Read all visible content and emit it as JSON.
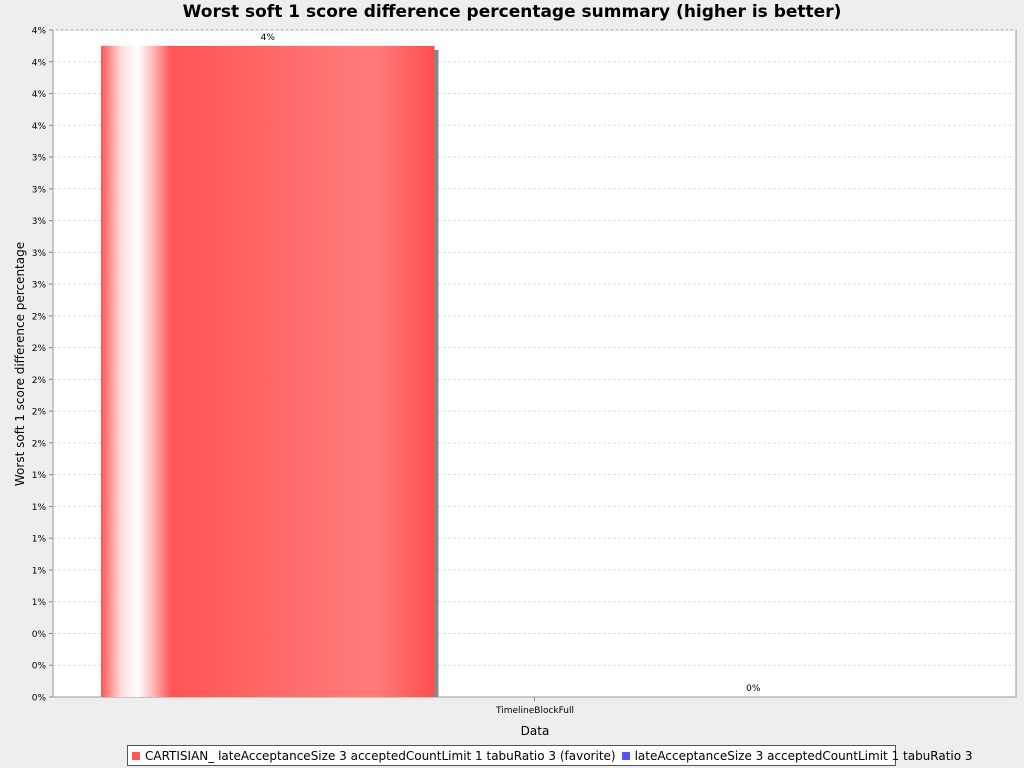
{
  "chart_data": {
    "type": "bar",
    "title": "Worst soft 1 score difference percentage summary (higher is better)",
    "xlabel": "Data",
    "ylabel": "Worst soft 1 score difference percentage",
    "categories": [
      "TimelineBlockFull"
    ],
    "series": [
      {
        "name": "CARTISIAN_ lateAcceptanceSize 3 acceptedCountLimit 1 tabuRatio 3 (favorite)",
        "color": "#ff5555",
        "values": [
          4.1
        ],
        "value_label": "4%"
      },
      {
        "name": "lateAcceptanceSize 3 acceptedCountLimit 1 tabuRatio 3",
        "color": "#5555ff",
        "values": [
          0.0
        ],
        "value_label": "0%"
      }
    ],
    "ylim": [
      0,
      4.2
    ],
    "yticks": [
      {
        "value": 0.0,
        "label": "0%"
      },
      {
        "value": 0.2,
        "label": "0%"
      },
      {
        "value": 0.4,
        "label": "0%"
      },
      {
        "value": 0.6,
        "label": "1%"
      },
      {
        "value": 0.8,
        "label": "1%"
      },
      {
        "value": 1.0,
        "label": "1%"
      },
      {
        "value": 1.2,
        "label": "1%"
      },
      {
        "value": 1.4,
        "label": "1%"
      },
      {
        "value": 1.6,
        "label": "2%"
      },
      {
        "value": 1.8,
        "label": "2%"
      },
      {
        "value": 2.0,
        "label": "2%"
      },
      {
        "value": 2.2,
        "label": "2%"
      },
      {
        "value": 2.4,
        "label": "2%"
      },
      {
        "value": 2.6,
        "label": "3%"
      },
      {
        "value": 2.8,
        "label": "3%"
      },
      {
        "value": 3.0,
        "label": "3%"
      },
      {
        "value": 3.2,
        "label": "3%"
      },
      {
        "value": 3.4,
        "label": "3%"
      },
      {
        "value": 3.6,
        "label": "4%"
      },
      {
        "value": 3.8,
        "label": "4%"
      },
      {
        "value": 4.0,
        "label": "4%"
      },
      {
        "value": 4.2,
        "label": "4%"
      }
    ],
    "grid": true,
    "legend_position": "bottom"
  }
}
